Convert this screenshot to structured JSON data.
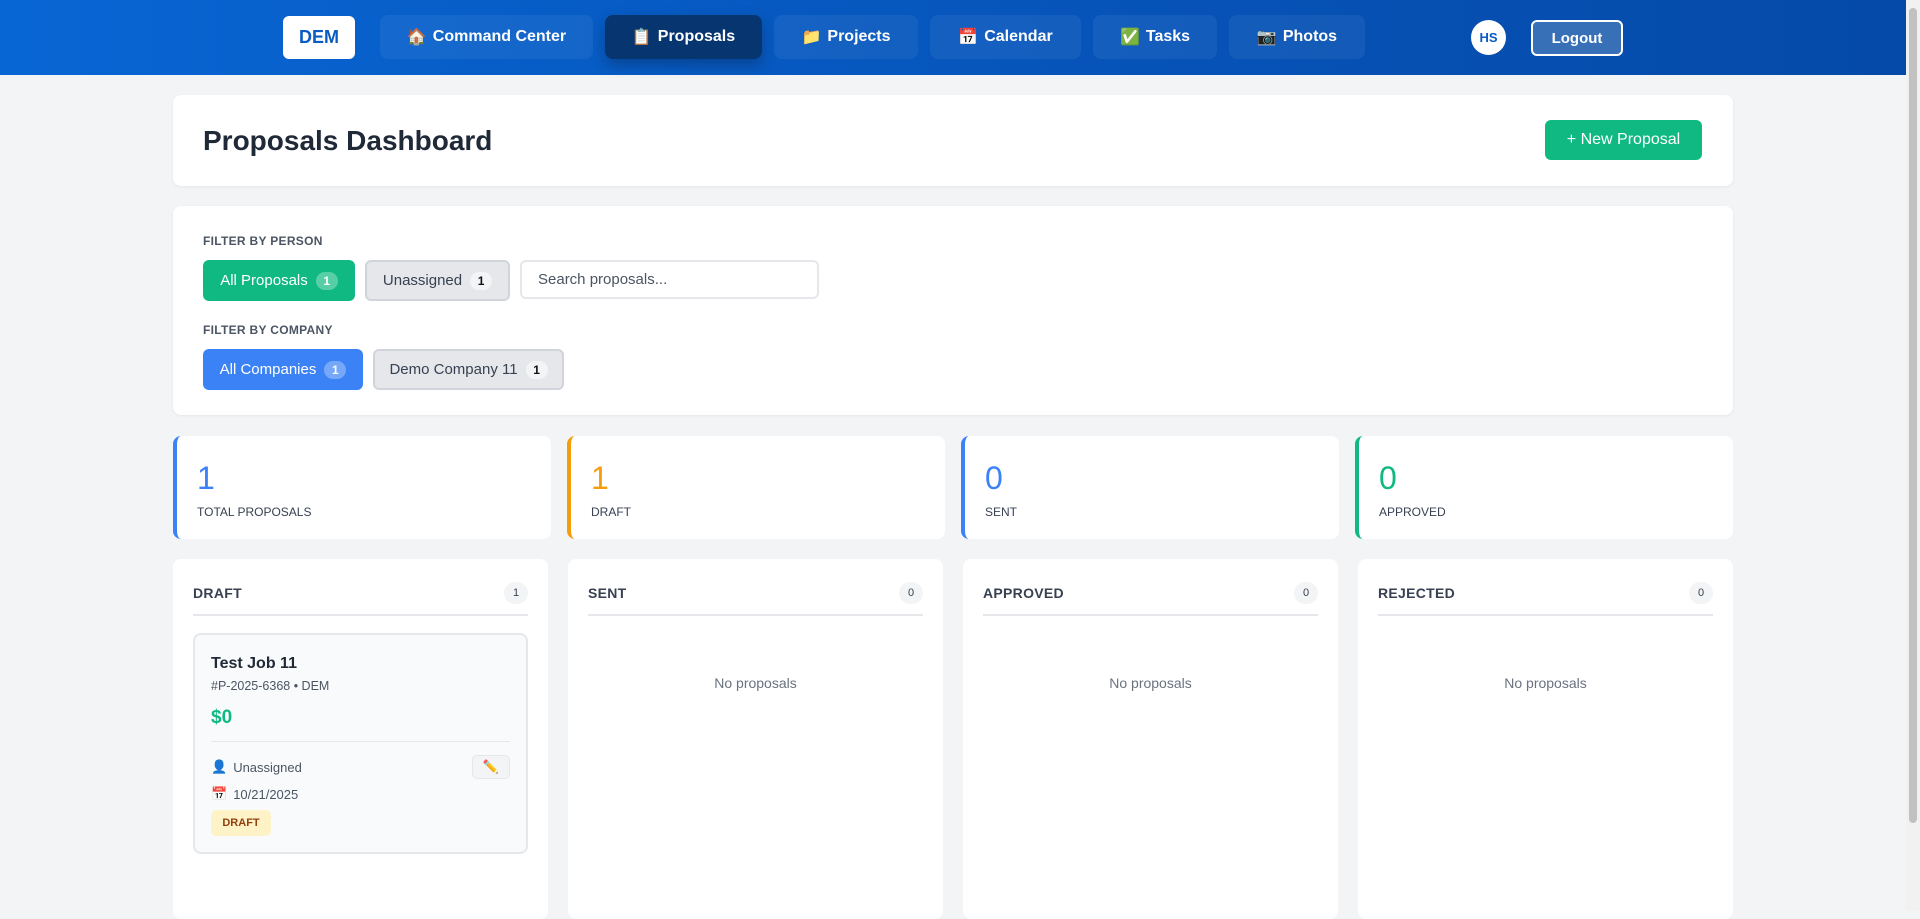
{
  "nav": {
    "logo": "DEM",
    "items": [
      {
        "label": "Command Center",
        "icon": "🏠"
      },
      {
        "label": "Proposals",
        "icon": "📋"
      },
      {
        "label": "Projects",
        "icon": "📁"
      },
      {
        "label": "Calendar",
        "icon": "📅"
      },
      {
        "label": "Tasks",
        "icon": "✅"
      },
      {
        "label": "Photos",
        "icon": "📷"
      }
    ],
    "active": "Proposals",
    "avatar": "HS",
    "logout": "Logout"
  },
  "header": {
    "title": "Proposals Dashboard",
    "new_button": "+  New Proposal"
  },
  "filters": {
    "person_label": "FILTER BY PERSON",
    "person": [
      {
        "label": "All Proposals",
        "count": "1"
      },
      {
        "label": "Unassigned",
        "count": "1"
      }
    ],
    "search_placeholder": "Search proposals...",
    "company_label": "FILTER BY COMPANY",
    "company": [
      {
        "label": "All Companies",
        "count": "1"
      },
      {
        "label": "Demo Company 11",
        "count": "1"
      }
    ]
  },
  "stats": [
    {
      "value": "1",
      "label": "TOTAL PROPOSALS",
      "color": "#3b82f6"
    },
    {
      "value": "1",
      "label": "DRAFT",
      "color": "#f59e0b"
    },
    {
      "value": "0",
      "label": "SENT",
      "color": "#3b82f6"
    },
    {
      "value": "0",
      "label": "APPROVED",
      "color": "#10b981"
    }
  ],
  "columns": [
    {
      "title": "DRAFT",
      "count": "1"
    },
    {
      "title": "SENT",
      "count": "0",
      "empty": "No proposals"
    },
    {
      "title": "APPROVED",
      "count": "0",
      "empty": "No proposals"
    },
    {
      "title": "REJECTED",
      "count": "0",
      "empty": "No proposals"
    }
  ],
  "proposal": {
    "title": "Test Job 11",
    "subtitle": "#P-2025-6368 • DEM",
    "amount": "$0",
    "assignee": "Unassigned",
    "date": "10/21/2025",
    "status": "DRAFT",
    "user_icon": "👤",
    "date_icon": "📅",
    "edit_icon": "✏️"
  }
}
